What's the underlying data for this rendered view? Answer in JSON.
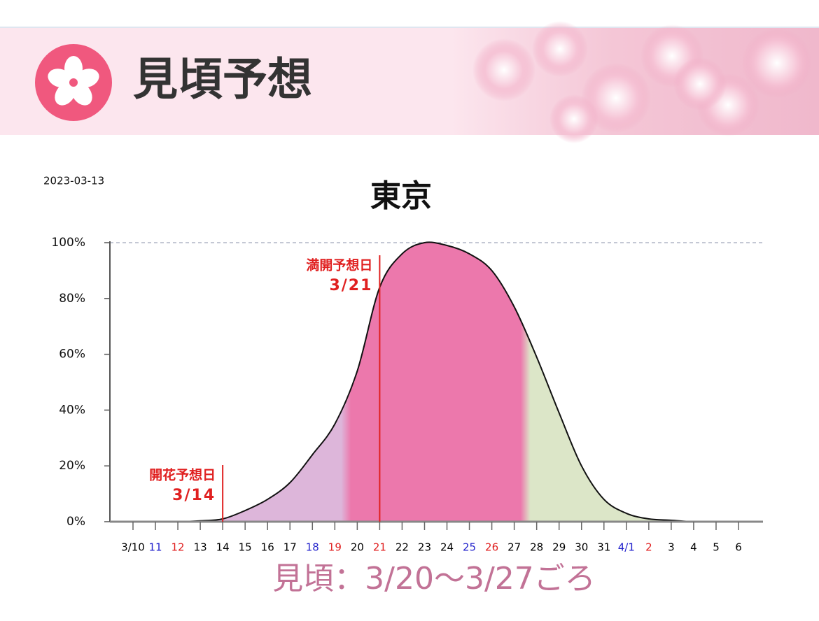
{
  "header": {
    "title": "見頃予想"
  },
  "chart_data": {
    "type": "area",
    "date": "2023-03-13",
    "title": "東京",
    "categories": [
      "3/10",
      "11",
      "12",
      "13",
      "14",
      "15",
      "16",
      "17",
      "18",
      "19",
      "20",
      "21",
      "22",
      "23",
      "24",
      "25",
      "26",
      "27",
      "28",
      "29",
      "30",
      "31",
      "4/1",
      "2",
      "3",
      "4",
      "5",
      "6"
    ],
    "category_colors": [
      "#000",
      "#2222cc",
      "#e02020",
      "#000",
      "#000",
      "#000",
      "#000",
      "#000",
      "#2222cc",
      "#e02020",
      "#000",
      "#e02020",
      "#000",
      "#000",
      "#000",
      "#2222cc",
      "#e02020",
      "#000",
      "#000",
      "#000",
      "#000",
      "#000",
      "#2222cc",
      "#e02020",
      "#000",
      "#000",
      "#000",
      "#000"
    ],
    "values": [
      0,
      0,
      0,
      0.3,
      1,
      4,
      8,
      14,
      24,
      35,
      54,
      84,
      96,
      100,
      99,
      96,
      90,
      77,
      59,
      39,
      20,
      8,
      3,
      1,
      0.5,
      0,
      0,
      0
    ],
    "ylim": [
      0,
      100
    ],
    "yticks": [
      {
        "value": 0,
        "label": "0%"
      },
      {
        "value": 20,
        "label": "20%"
      },
      {
        "value": 40,
        "label": "40%"
      },
      {
        "value": 60,
        "label": "60%"
      },
      {
        "value": 80,
        "label": "80%"
      },
      {
        "value": 100,
        "label": "100%"
      }
    ],
    "zones": [
      {
        "from": 0,
        "to": 9.5,
        "color": "#ddb6da"
      },
      {
        "from": 9.5,
        "to": 17.5,
        "color": "#ec78ac"
      },
      {
        "from": 17.5,
        "to": 27,
        "color": "#dce6c8"
      }
    ],
    "annotations": [
      {
        "label": "開花予想日",
        "date": "3/14",
        "x": 4,
        "color": "#e02020"
      },
      {
        "label": "満開予想日",
        "date": "3/21",
        "x": 11,
        "color": "#e02020"
      }
    ],
    "footer": "見頃：3/20〜3/27ごろ"
  }
}
